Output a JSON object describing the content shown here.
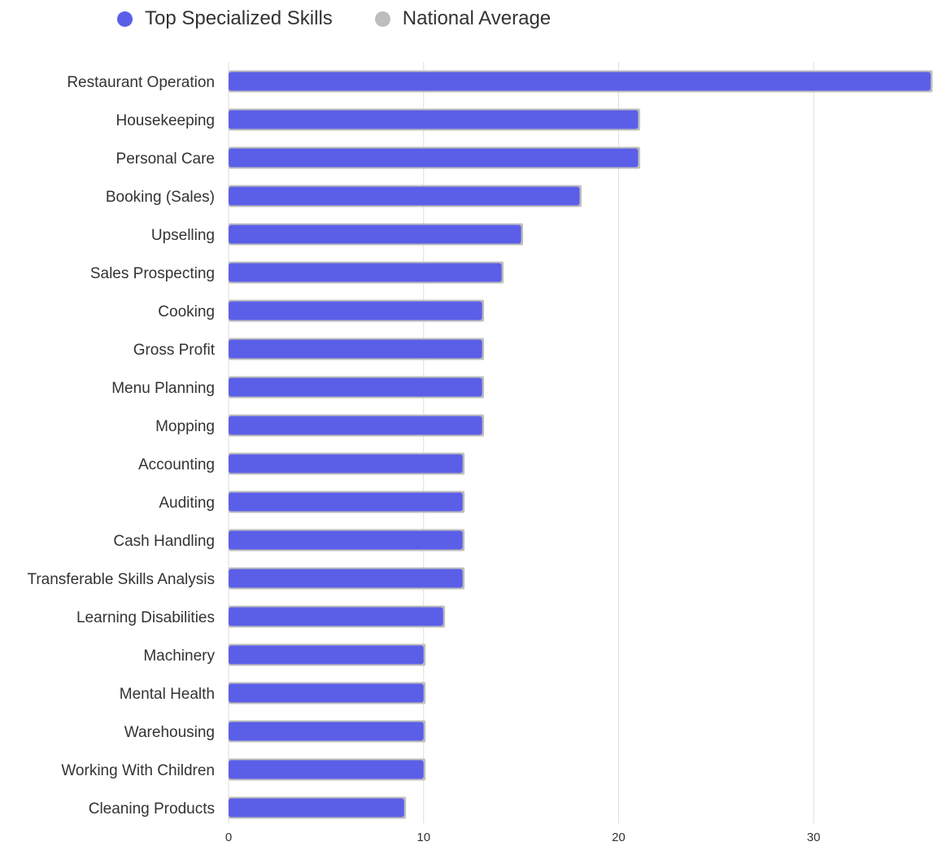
{
  "chart_data": {
    "type": "bar",
    "orientation": "horizontal",
    "categories": [
      "Restaurant Operation",
      "Housekeeping",
      "Personal Care",
      "Booking (Sales)",
      "Upselling",
      "Sales Prospecting",
      "Cooking",
      "Gross Profit",
      "Menu Planning",
      "Mopping",
      "Accounting",
      "Auditing",
      "Cash Handling",
      "Transferable Skills Analysis",
      "Learning Disabilities",
      "Machinery",
      "Mental Health",
      "Warehousing",
      "Working With Children",
      "Cleaning Products"
    ],
    "series": [
      {
        "name": "Top Specialized Skills",
        "color": "#5b5fe8",
        "values": [
          36,
          21,
          21,
          18,
          15,
          14,
          13,
          13,
          13,
          13,
          12,
          12,
          12,
          12,
          11,
          10,
          10,
          10,
          10,
          9
        ]
      },
      {
        "name": "National Average",
        "color": "#bdbdbd",
        "values": [
          36.1,
          21.1,
          21.1,
          18.1,
          15.1,
          14.1,
          13.1,
          13.1,
          13.1,
          13.1,
          12.1,
          12.1,
          12.1,
          12.1,
          11.1,
          10.1,
          10.1,
          10.1,
          10.1,
          9.1
        ]
      }
    ],
    "xlim": [
      0,
      36
    ],
    "xticks": [
      0,
      10,
      20,
      30
    ],
    "grid": true,
    "legend_position": "top-left"
  }
}
